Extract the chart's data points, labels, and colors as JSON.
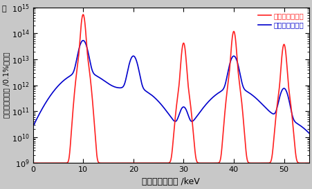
{
  "title": "",
  "xlabel": "光子エネルギー /keV",
  "ylabel": "光子フラックス /0.1%バンド",
  "ylabel_top": "屋",
  "xlim": [
    0,
    55
  ],
  "ylim_log": [
    9,
    15
  ],
  "legend_next": "次世代放射光源",
  "legend_current": "現在の放射光源",
  "color_next": "#ff2020",
  "color_current": "#0000cc",
  "background": "#c8c8c8",
  "plot_bg": "#ffffff",
  "red_harmonics": [
    10,
    30,
    40,
    50
  ],
  "red_peak_log": [
    14.7,
    13.6,
    14.05,
    13.55
  ],
  "blue_harmonics": [
    10,
    20,
    30,
    40,
    50
  ],
  "blue_peak_log": [
    13.7,
    13.1,
    11.1,
    13.1,
    11.85
  ],
  "base_log": 9.0,
  "red_sharp_sigma": 0.28,
  "red_broad_sigma": 0.6,
  "blue_sharp_sigma": 0.65,
  "blue_broad_sigma": 3.2,
  "linewidth": 1.2
}
